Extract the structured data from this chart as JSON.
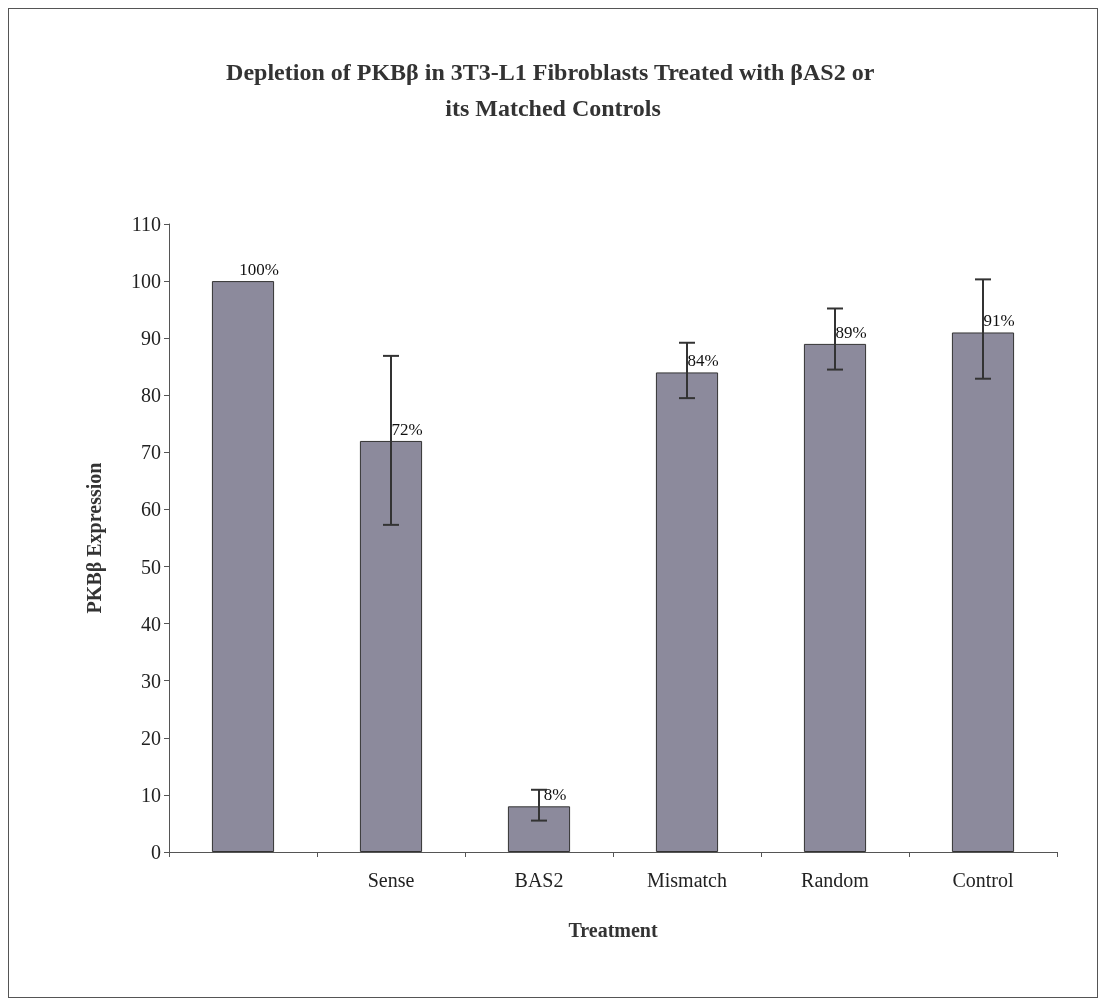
{
  "chart_data": {
    "type": "bar",
    "title": "Depletion of PKBβ in 3T3-L1 Fibroblasts Treated with βAS2 or its Matched Controls",
    "xlabel": "Treatment",
    "ylabel": "PKBβ Expression",
    "categories": [
      null,
      "Sense",
      "BAS2",
      "Mismatch",
      "Random",
      "Control"
    ],
    "values": [
      100,
      72,
      8,
      84,
      89,
      91
    ],
    "value_labels": [
      "100%",
      "72%",
      "8%",
      "84%",
      "89%",
      "91%"
    ],
    "errors": [
      null,
      [
        57.3,
        86.9
      ],
      [
        5.5,
        10.9
      ],
      [
        79.5,
        89.2
      ],
      [
        84.5,
        95.2
      ],
      [
        82.9,
        100.3
      ]
    ],
    "color": "#8c8a9c",
    "ylim": [
      0,
      110
    ],
    "yticks": [
      0,
      10,
      20,
      30,
      40,
      50,
      60,
      70,
      80,
      90,
      100,
      110
    ],
    "grid": false
  }
}
